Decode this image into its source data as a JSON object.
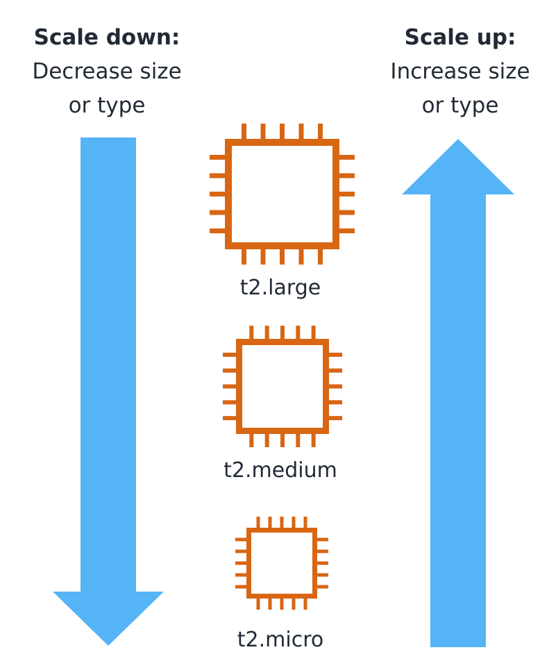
{
  "scale_down": {
    "title": "Scale down:",
    "line1": "Decrease size",
    "line2": "or type"
  },
  "scale_up": {
    "title": "Scale up:",
    "line1": "Increase size",
    "line2": "or type"
  },
  "instances": [
    {
      "label": "t2.large",
      "icon": "chip-icon"
    },
    {
      "label": "t2.medium",
      "icon": "chip-icon"
    },
    {
      "label": "t2.micro",
      "icon": "chip-icon"
    }
  ],
  "colors": {
    "arrow": "#55b4f6",
    "chip": "#d86613",
    "text": "#222a35"
  }
}
